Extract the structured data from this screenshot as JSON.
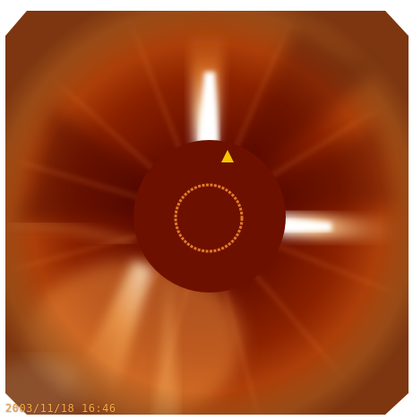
{
  "image": {
    "timestamp": "2003/11/18 16:46",
    "palette": {
      "frame": "#ffffff",
      "background": "#7a1600",
      "dark_red": "#4f0800",
      "occulter": "#6e1000",
      "occulter_ring": "#e07a2a",
      "streamer": "#ffffff",
      "marker": "#f6c400"
    }
  }
}
